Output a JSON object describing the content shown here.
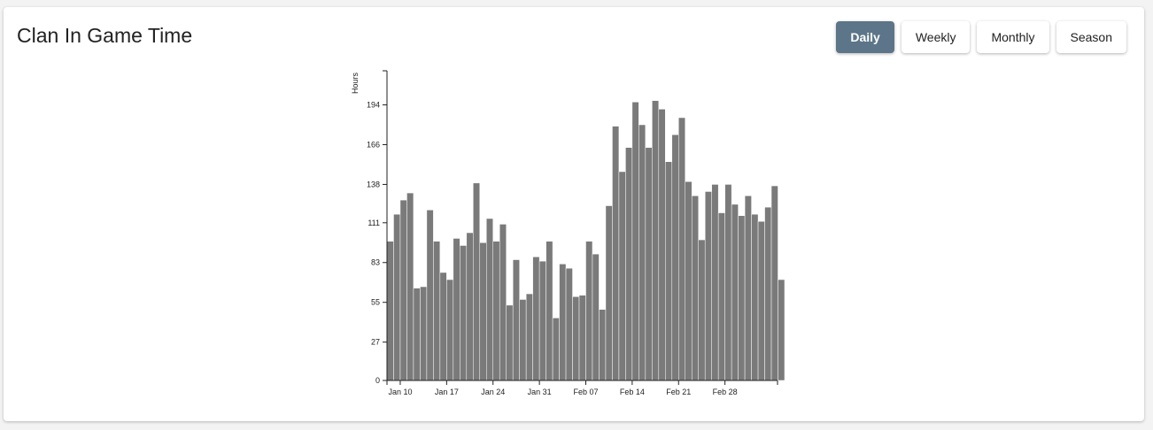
{
  "panel": {
    "title": "Clan In Game Time",
    "buttons": [
      {
        "label": "Daily",
        "active": true
      },
      {
        "label": "Weekly",
        "active": false
      },
      {
        "label": "Monthly",
        "active": false
      },
      {
        "label": "Season",
        "active": false
      }
    ]
  },
  "colors": {
    "bar": "#7a7a7a",
    "active_button": "#5c7588"
  },
  "chart_data": {
    "type": "bar",
    "title": "",
    "xlabel": "",
    "ylabel": "Hours",
    "ylim": [
      0,
      218
    ],
    "y_ticks": [
      0,
      27,
      55,
      83,
      111,
      138,
      166,
      194
    ],
    "x_ticks": [
      "Jan 10",
      "Jan 17",
      "Jan 24",
      "Jan 31",
      "Feb 07",
      "Feb 14",
      "Feb 21",
      "Feb 28"
    ],
    "start_date": "Jan 8",
    "values": [
      98,
      117,
      127,
      132,
      65,
      66,
      120,
      98,
      76,
      71,
      100,
      95,
      104,
      139,
      97,
      114,
      98,
      110,
      53,
      85,
      57,
      61,
      87,
      84,
      98,
      44,
      82,
      79,
      59,
      60,
      98,
      89,
      50,
      123,
      179,
      147,
      164,
      196,
      180,
      164,
      197,
      191,
      154,
      173,
      185,
      140,
      130,
      99,
      133,
      138,
      118,
      138,
      124,
      116,
      130,
      117,
      112,
      122,
      137,
      71
    ]
  }
}
